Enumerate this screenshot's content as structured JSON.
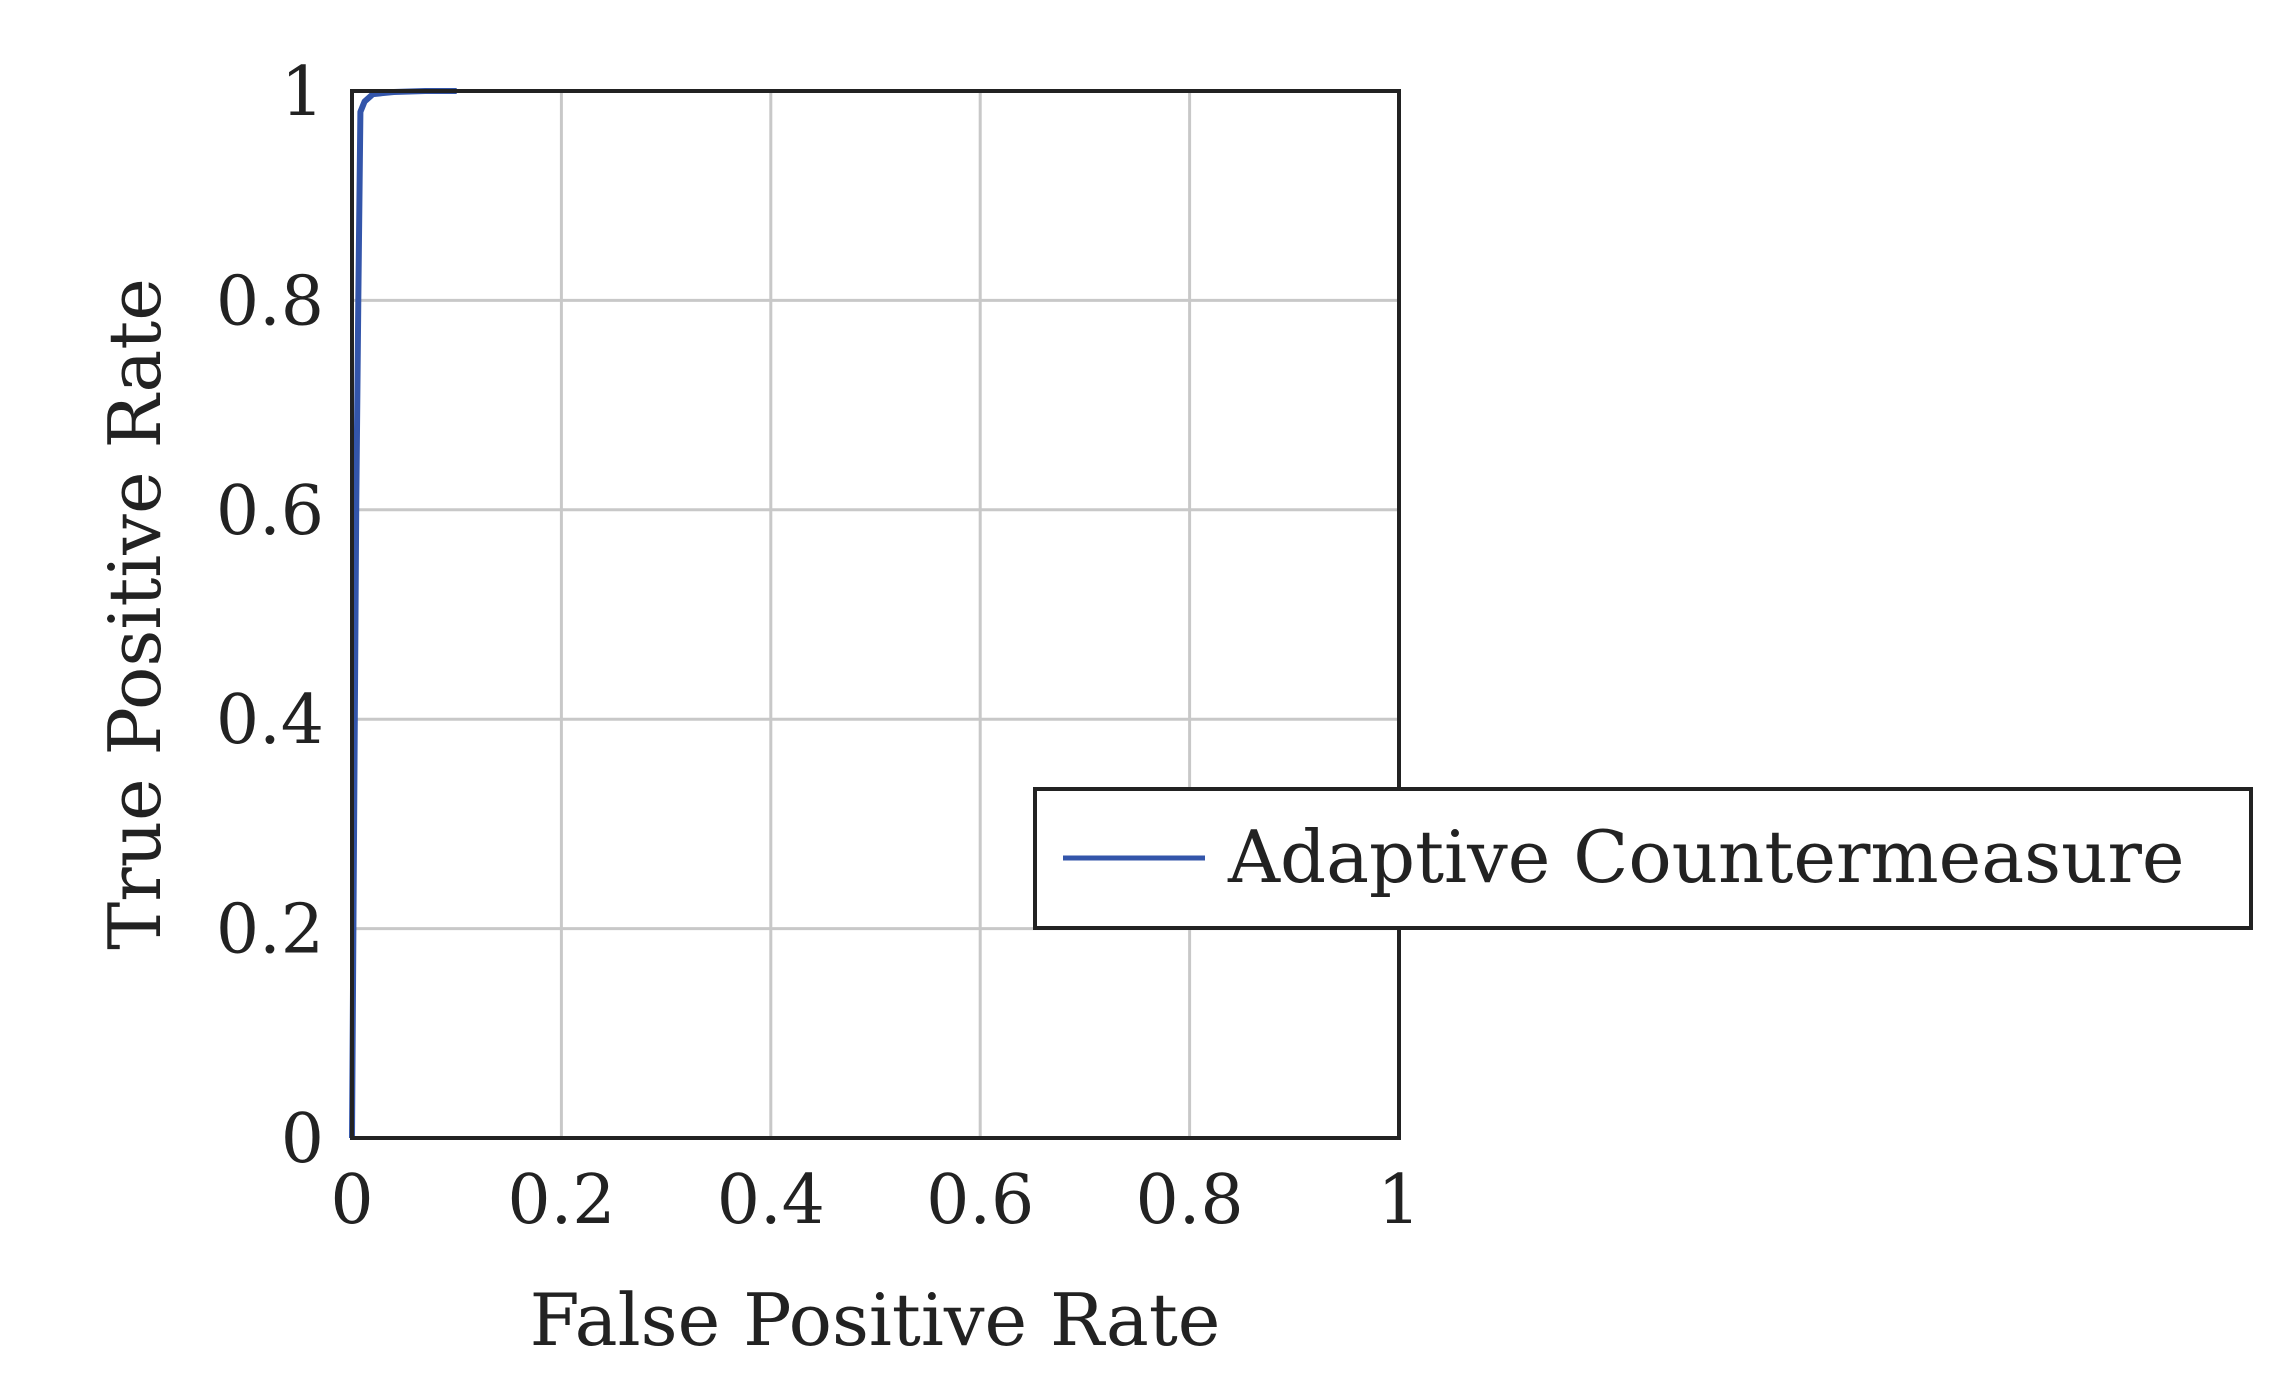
{
  "chart_data": {
    "type": "line",
    "title": "",
    "xlabel": "False Positive Rate",
    "ylabel": "True Positive Rate",
    "xlim": [
      0,
      1
    ],
    "ylim": [
      0,
      1
    ],
    "xticks": [
      "0",
      "0.2",
      "0.4",
      "0.6",
      "0.8",
      "1"
    ],
    "yticks": [
      "0",
      "0.2",
      "0.4",
      "0.6",
      "0.8",
      "1"
    ],
    "grid": true,
    "legend_placement": "right",
    "series": [
      {
        "name": "Adaptive Countermeasure",
        "color": "#3355aa",
        "x": [
          0,
          0.002,
          0.004,
          0.006,
          0.008,
          0.012,
          0.02,
          0.04,
          0.07,
          0.1
        ],
        "y": [
          0,
          0.3,
          0.6,
          0.8,
          0.98,
          0.99,
          0.997,
          0.999,
          1.0,
          1.0
        ]
      }
    ]
  }
}
